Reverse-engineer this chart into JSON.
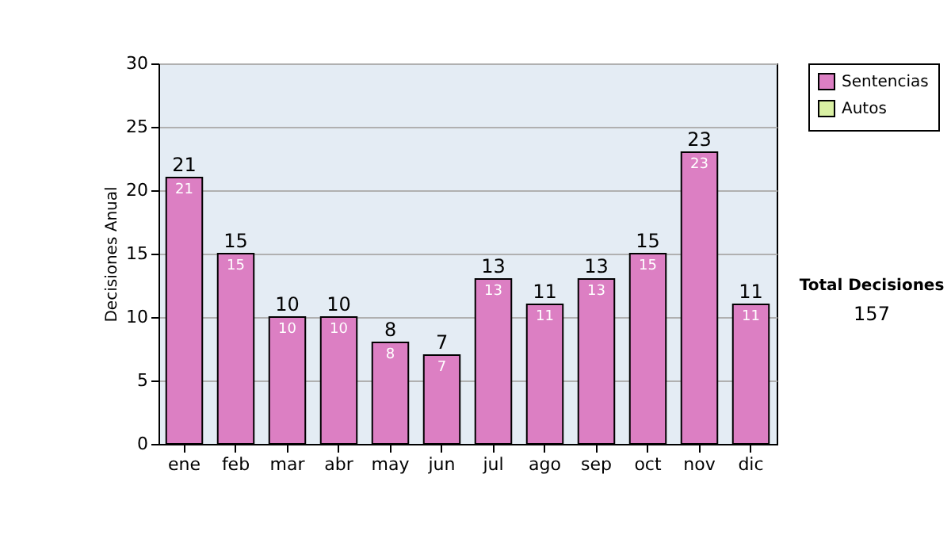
{
  "chart_data": {
    "type": "bar",
    "stacked": true,
    "ylabel": "Decisiones Anual",
    "categories": [
      "ene",
      "feb",
      "mar",
      "abr",
      "may",
      "jun",
      "jul",
      "ago",
      "sep",
      "oct",
      "nov",
      "dic"
    ],
    "series": [
      {
        "name": "Sentencias",
        "color": "#dc7fc3",
        "values": [
          21,
          15,
          10,
          10,
          8,
          7,
          13,
          11,
          13,
          15,
          23,
          11
        ],
        "value_labels": [
          "21",
          "15",
          "10",
          "10",
          "8",
          "7",
          "13",
          "11",
          "13",
          "15",
          "23",
          "11"
        ]
      },
      {
        "name": "Autos",
        "color": "#d9f0a3",
        "values": [
          null,
          null,
          null,
          null,
          null,
          null,
          null,
          null,
          null,
          null,
          null,
          null
        ]
      }
    ],
    "totals": [
      "21",
      "15",
      "10",
      "10",
      "8",
      "7",
      "13",
      "11",
      "13",
      "15",
      "23",
      "11"
    ],
    "ylim": [
      0,
      30
    ],
    "yticks": [
      0,
      5,
      10,
      15,
      20,
      25,
      30
    ],
    "grid": "y",
    "legend": "right",
    "annotations": [
      "Total Decisiones",
      "157"
    ]
  }
}
